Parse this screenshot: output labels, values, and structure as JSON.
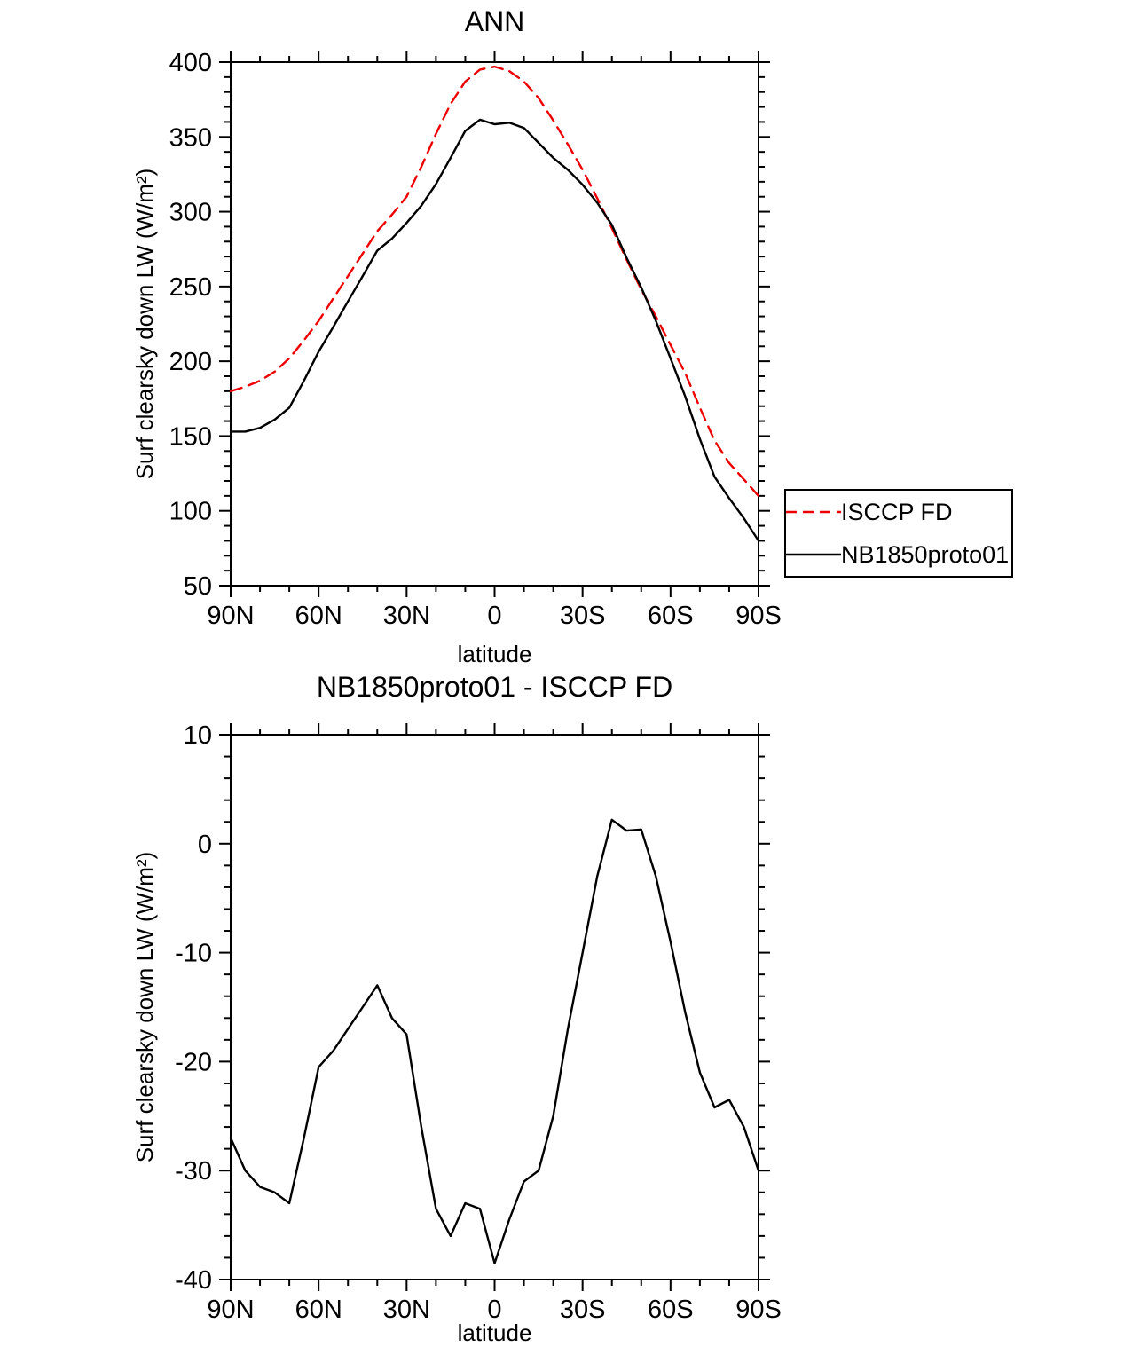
{
  "chart_data": [
    {
      "type": "line",
      "title": "ANN",
      "xlabel": "latitude",
      "ylabel": "Surf clearsky down LW (W/m²)",
      "x_ticklabels": [
        "90N",
        "60N",
        "30N",
        "0",
        "30S",
        "60S",
        "90S"
      ],
      "x_ticks": [
        90,
        60,
        30,
        0,
        -30,
        -60,
        -90
      ],
      "x_minor_step": 10,
      "ylim": [
        50,
        400
      ],
      "y_tick_step": 50,
      "y_minor_step": 10,
      "grid": false,
      "legend": {
        "position": "outside-right-bottom"
      },
      "x": [
        90,
        85,
        80,
        75,
        70,
        65,
        60,
        55,
        50,
        45,
        40,
        35,
        30,
        25,
        20,
        15,
        10,
        5,
        0,
        -5,
        -10,
        -15,
        -20,
        -25,
        -30,
        -35,
        -40,
        -45,
        -50,
        -55,
        -60,
        -65,
        -70,
        -75,
        -80,
        -85,
        -90
      ],
      "series": [
        {
          "name": "ISCCP FD",
          "color": "#ee0000",
          "style": "dashed",
          "values": [
            180,
            183,
            187,
            193,
            202,
            214,
            227,
            242,
            257,
            272,
            287,
            298,
            310,
            330,
            352,
            372,
            387,
            395,
            397,
            394,
            387,
            376,
            361,
            345,
            328,
            309,
            289,
            268,
            248,
            230,
            211,
            192,
            169,
            147,
            132,
            121,
            110
          ]
        },
        {
          "name": "NB1850proto01",
          "color": "#000000",
          "style": "solid",
          "values": [
            153,
            153,
            155.5,
            161,
            169,
            187,
            206.5,
            223,
            240,
            257,
            274,
            282,
            292.5,
            304,
            318.5,
            336,
            354,
            361.5,
            358.5,
            359.5,
            356,
            346,
            336,
            328,
            318,
            306,
            291.2,
            269.2,
            249.3,
            227,
            202,
            176.5,
            148,
            122.8,
            108.5,
            95,
            80
          ]
        }
      ]
    },
    {
      "type": "line",
      "title": "NB1850proto01 - ISCCP FD",
      "xlabel": "latitude",
      "ylabel": "Surf clearsky down LW (W/m²)",
      "x_ticklabels": [
        "90N",
        "60N",
        "30N",
        "0",
        "30S",
        "60S",
        "90S"
      ],
      "x_ticks": [
        90,
        60,
        30,
        0,
        -30,
        -60,
        -90
      ],
      "x_minor_step": 10,
      "ylim": [
        -40,
        10
      ],
      "y_tick_step": 10,
      "y_minor_step": 2,
      "grid": false,
      "x": [
        90,
        85,
        80,
        75,
        70,
        65,
        60,
        55,
        50,
        45,
        40,
        35,
        30,
        25,
        20,
        15,
        10,
        5,
        0,
        -5,
        -10,
        -15,
        -20,
        -25,
        -30,
        -35,
        -40,
        -45,
        -50,
        -55,
        -60,
        -65,
        -70,
        -75,
        -80,
        -85,
        -90
      ],
      "series": [
        {
          "name": "NB1850proto01 - ISCCP FD",
          "color": "#000000",
          "style": "solid",
          "values": [
            -27,
            -30,
            -31.5,
            -32,
            -33,
            -27,
            -20.5,
            -19,
            -17,
            -15,
            -13,
            -16,
            -17.5,
            -26,
            -33.5,
            -36,
            -33,
            -33.5,
            -38.5,
            -34.5,
            -31,
            -30,
            -25,
            -17,
            -10,
            -3,
            2.2,
            1.2,
            1.3,
            -3,
            -9,
            -15.5,
            -21,
            -24.2,
            -23.5,
            -26,
            -30
          ]
        }
      ]
    }
  ]
}
